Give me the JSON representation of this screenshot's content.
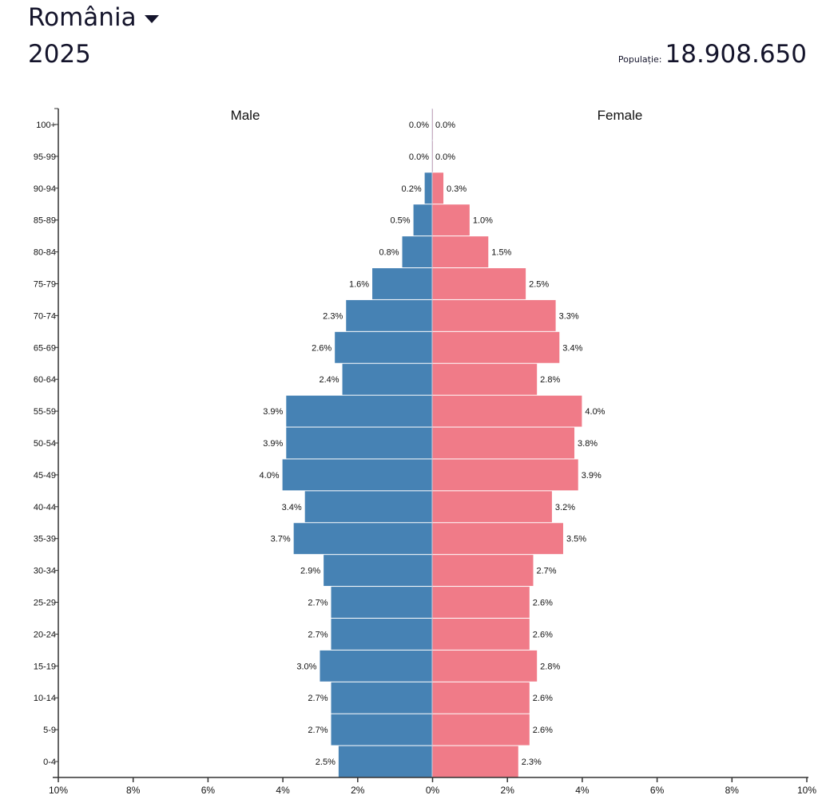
{
  "header": {
    "country": "România",
    "year": "2025",
    "population_label": "Populație:",
    "population_value": "18.908.650"
  },
  "colors": {
    "male": "#4682b4",
    "female": "#f07b88"
  },
  "chart_data": {
    "type": "bar",
    "orientation": "horizontal population pyramid",
    "categories": [
      "100+",
      "95-99",
      "90-94",
      "85-89",
      "80-84",
      "75-79",
      "70-74",
      "65-69",
      "60-64",
      "55-59",
      "50-54",
      "45-49",
      "40-44",
      "35-39",
      "30-34",
      "25-29",
      "20-24",
      "15-19",
      "10-14",
      "5-9",
      "0-4"
    ],
    "series": [
      {
        "name": "Male",
        "values": [
          0.0,
          0.0,
          0.2,
          0.5,
          0.8,
          1.6,
          2.3,
          2.6,
          2.4,
          3.9,
          3.9,
          4.0,
          3.4,
          3.7,
          2.9,
          2.7,
          2.7,
          3.0,
          2.7,
          2.7,
          2.5
        ],
        "labels": [
          "0.0%",
          "0.0%",
          "0.2%",
          "0.5%",
          "0.8%",
          "1.6%",
          "2.3%",
          "2.6%",
          "2.4%",
          "3.9%",
          "3.9%",
          "4.0%",
          "3.4%",
          "3.7%",
          "2.9%",
          "2.7%",
          "2.7%",
          "3.0%",
          "2.7%",
          "2.7%",
          "2.5%"
        ]
      },
      {
        "name": "Female",
        "values": [
          0.0,
          0.0,
          0.3,
          1.0,
          1.5,
          2.5,
          3.3,
          3.4,
          2.8,
          4.0,
          3.8,
          3.9,
          3.2,
          3.5,
          2.7,
          2.6,
          2.6,
          2.8,
          2.6,
          2.6,
          2.3
        ],
        "labels": [
          "0.0%",
          "0.0%",
          "0.3%",
          "1.0%",
          "1.5%",
          "2.5%",
          "3.3%",
          "3.4%",
          "2.8%",
          "4.0%",
          "3.8%",
          "3.9%",
          "3.2%",
          "3.5%",
          "2.7%",
          "2.6%",
          "2.6%",
          "2.8%",
          "2.6%",
          "2.6%",
          "2.3%"
        ]
      }
    ],
    "xlim": [
      -10,
      10
    ],
    "xticks": [
      "10%",
      "8%",
      "6%",
      "4%",
      "2%",
      "0%",
      "2%",
      "4%",
      "6%",
      "8%",
      "10%"
    ],
    "xlabel": "",
    "ylabel": ""
  }
}
